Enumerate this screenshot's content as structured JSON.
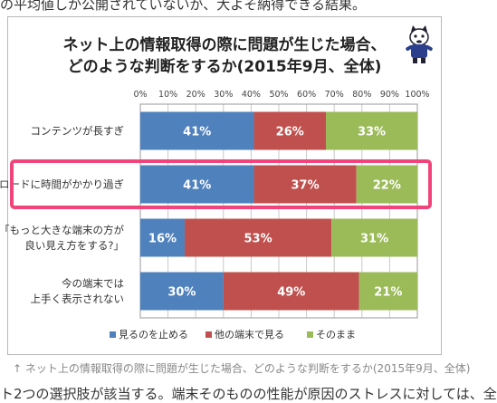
{
  "page": {
    "top_text": "の平均値しか公開されていないが、大よそ納得できる結果。",
    "caption": "↑ ネット上の情報取得の際に問題が生じた場合、どのような判断をするか(2015年9月、全体)",
    "bottom_text": "ト2つの選択肢が該当する。端末そのものの性能が原因のストレスに対しては、全"
  },
  "colors": {
    "blue": "#4f81bd",
    "red": "#c0504d",
    "green": "#9bbb59",
    "highlight": "#f0457a"
  },
  "chart_data": {
    "type": "bar",
    "orientation": "horizontal-stacked-100",
    "title_line1": "ネット上の情報取得の際に問題が生じた場合、",
    "title_line2": "どのような判断をするか(2015年9月、全体)",
    "xlim": [
      0,
      100
    ],
    "x_ticks": [
      "0%",
      "10%",
      "20%",
      "30%",
      "40%",
      "50%",
      "60%",
      "70%",
      "80%",
      "90%",
      "100%"
    ],
    "grid": true,
    "legend_position": "bottom",
    "categories": [
      [
        "コンテンツが長すぎ"
      ],
      [
        "ロードに時間がかかり過ぎ"
      ],
      [
        "「もっと大きな端末の方が",
        "良い見え方をする?」"
      ],
      [
        "今の端末では",
        "上手く表示されない"
      ]
    ],
    "highlighted_category": 1,
    "series": [
      {
        "name": "見るのを止める",
        "values": [
          41,
          41,
          16,
          30
        ],
        "labels": [
          "41%",
          "41%",
          "16%",
          "30%"
        ]
      },
      {
        "name": "他の端末で見る",
        "values": [
          26,
          37,
          53,
          49
        ],
        "labels": [
          "26%",
          "37%",
          "53%",
          "49%"
        ]
      },
      {
        "name": "そのまま",
        "values": [
          33,
          22,
          31,
          21
        ],
        "labels": [
          "33%",
          "22%",
          "31%",
          "21%"
        ]
      }
    ]
  }
}
